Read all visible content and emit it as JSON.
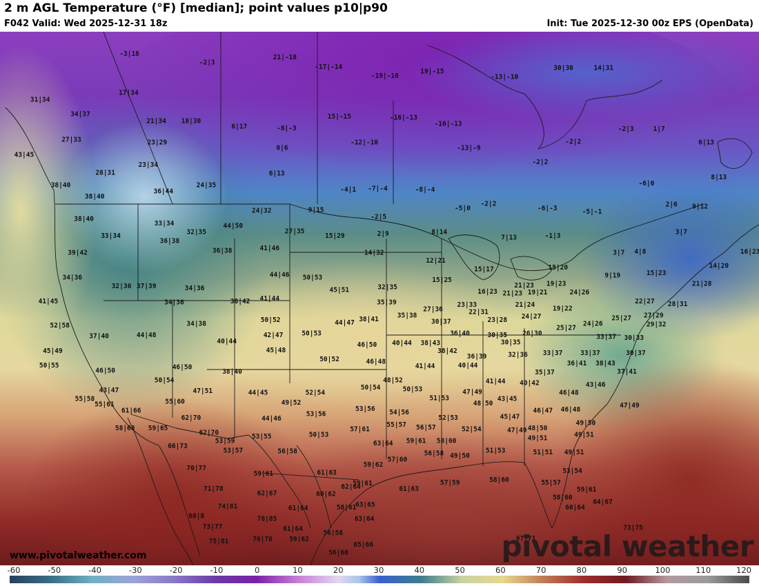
{
  "header": {
    "title": "2 m AGL Temperature (°F) [median]; point values p10|p90",
    "valid": "F042 Valid: Wed 2025-12-31 18z",
    "init": "Init: Tue 2025-12-30 00z EPS (OpenData)"
  },
  "footer": {
    "website": "www.pivotalweather.com",
    "brand": "pivotal weather"
  },
  "legend": {
    "ticks": [
      "-60",
      "-50",
      "-40",
      "-30",
      "-20",
      "-10",
      "0",
      "10",
      "20",
      "30",
      "40",
      "50",
      "60",
      "70",
      "80",
      "90",
      "100",
      "110",
      "120"
    ],
    "min": -60,
    "max": 120
  },
  "colors": {
    "cold_purple": "#7a35b8",
    "teal": "#3f7f86",
    "warm_tan": "#e9dfa0",
    "hot_red": "#8e1f22",
    "ocean_blue": "#3c66c7"
  },
  "point_values": [
    {
      "t": "-3|18",
      "x": -113.5,
      "y": 59.8
    },
    {
      "t": "-2|3",
      "x": -104.8,
      "y": 58.8
    },
    {
      "t": "21|-18",
      "x": -96.1,
      "y": 59.4
    },
    {
      "t": "-17|-14",
      "x": -91.2,
      "y": 58.3
    },
    {
      "t": "-19|-16",
      "x": -84.9,
      "y": 57.3
    },
    {
      "t": "19|-15",
      "x": -79.6,
      "y": 57.8
    },
    {
      "t": "-13|-10",
      "x": -71.5,
      "y": 57.2
    },
    {
      "t": "30|30",
      "x": -64.9,
      "y": 58.2
    },
    {
      "t": "14|31",
      "x": -60.4,
      "y": 58.2
    },
    {
      "t": "31|34",
      "x": -123.5,
      "y": 54.6
    },
    {
      "t": "17|34",
      "x": -113.6,
      "y": 55.4
    },
    {
      "t": "34|37",
      "x": -119.0,
      "y": 53.0
    },
    {
      "t": "21|34",
      "x": -110.5,
      "y": 52.2
    },
    {
      "t": "18|30",
      "x": -106.6,
      "y": 52.2
    },
    {
      "t": "6|17",
      "x": -101.2,
      "y": 51.6
    },
    {
      "t": "-8|-3",
      "x": -95.9,
      "y": 51.4
    },
    {
      "t": "15|-15",
      "x": -90.0,
      "y": 52.7
    },
    {
      "t": "-16|-13",
      "x": -82.8,
      "y": 52.6
    },
    {
      "t": "-16|-13",
      "x": -77.8,
      "y": 51.9
    },
    {
      "t": "-2|3",
      "x": -57.9,
      "y": 51.3
    },
    {
      "t": "1|7",
      "x": -54.2,
      "y": 51.3
    },
    {
      "t": "6|13",
      "x": -48.9,
      "y": 49.8
    },
    {
      "t": "27|33",
      "x": -120.0,
      "y": 50.1
    },
    {
      "t": "23|29",
      "x": -110.4,
      "y": 49.8
    },
    {
      "t": "0|6",
      "x": -96.4,
      "y": 49.2
    },
    {
      "t": "-12|-10",
      "x": -87.2,
      "y": 49.8
    },
    {
      "t": "-13|-9",
      "x": -75.5,
      "y": 49.2
    },
    {
      "t": "-2|2",
      "x": -63.8,
      "y": 49.9
    },
    {
      "t": "43|45",
      "x": -125.3,
      "y": 48.4
    },
    {
      "t": "23|34",
      "x": -111.4,
      "y": 47.3
    },
    {
      "t": "28|31",
      "x": -116.2,
      "y": 46.4
    },
    {
      "t": "6|13",
      "x": -97.0,
      "y": 46.3
    },
    {
      "t": "-2|2",
      "x": -67.5,
      "y": 47.6
    },
    {
      "t": "8|13",
      "x": -47.5,
      "y": 45.9
    },
    {
      "t": "38|40",
      "x": -121.2,
      "y": 45.0
    },
    {
      "t": "36|44",
      "x": -109.7,
      "y": 44.3
    },
    {
      "t": "24|35",
      "x": -104.9,
      "y": 45.0
    },
    {
      "t": "-4|1",
      "x": -89.0,
      "y": 44.5
    },
    {
      "t": "-7|-4",
      "x": -85.7,
      "y": 44.6
    },
    {
      "t": "-8|-4",
      "x": -80.4,
      "y": 44.5
    },
    {
      "t": "-6|0",
      "x": -55.6,
      "y": 45.2
    },
    {
      "t": "38|40",
      "x": -117.4,
      "y": 43.7
    },
    {
      "t": "24|32",
      "x": -98.7,
      "y": 42.1
    },
    {
      "t": "9|15",
      "x": -92.6,
      "y": 42.2
    },
    {
      "t": "-2|5",
      "x": -85.6,
      "y": 41.4
    },
    {
      "t": "-5|0",
      "x": -76.2,
      "y": 42.4
    },
    {
      "t": "-2|2",
      "x": -73.3,
      "y": 42.9
    },
    {
      "t": "-6|-3",
      "x": -66.7,
      "y": 42.4
    },
    {
      "t": "-5|-1",
      "x": -61.7,
      "y": 42.0
    },
    {
      "t": "2|6",
      "x": -52.8,
      "y": 42.8
    },
    {
      "t": "9|12",
      "x": -49.6,
      "y": 42.6
    },
    {
      "t": "38|40",
      "x": -118.6,
      "y": 41.2
    },
    {
      "t": "33|34",
      "x": -109.6,
      "y": 40.7
    },
    {
      "t": "44|50",
      "x": -101.9,
      "y": 40.4
    },
    {
      "t": "27|35",
      "x": -95.0,
      "y": 39.8
    },
    {
      "t": "15|29",
      "x": -90.5,
      "y": 39.3
    },
    {
      "t": "2|9",
      "x": -85.1,
      "y": 39.5
    },
    {
      "t": "8|14",
      "x": -78.8,
      "y": 39.7
    },
    {
      "t": "7|13",
      "x": -71.0,
      "y": 39.1
    },
    {
      "t": "-1|3",
      "x": -66.1,
      "y": 39.3
    },
    {
      "t": "3|7",
      "x": -51.7,
      "y": 39.7
    },
    {
      "t": "33|34",
      "x": -115.6,
      "y": 39.3
    },
    {
      "t": "32|35",
      "x": -106.0,
      "y": 39.7
    },
    {
      "t": "36|38",
      "x": -109.0,
      "y": 38.7
    },
    {
      "t": "41|46",
      "x": -97.8,
      "y": 37.9
    },
    {
      "t": "39|42",
      "x": -119.3,
      "y": 37.4
    },
    {
      "t": "36|38",
      "x": -103.1,
      "y": 37.6
    },
    {
      "t": "14|32",
      "x": -86.1,
      "y": 37.4
    },
    {
      "t": "3|7",
      "x": -58.7,
      "y": 37.4
    },
    {
      "t": "4|8",
      "x": -56.3,
      "y": 37.5
    },
    {
      "t": "16|23",
      "x": -44.0,
      "y": 37.5
    },
    {
      "t": "12|21",
      "x": -79.2,
      "y": 36.5
    },
    {
      "t": "15|17",
      "x": -73.8,
      "y": 35.5
    },
    {
      "t": "15|20",
      "x": -65.5,
      "y": 35.7
    },
    {
      "t": "14|20",
      "x": -47.5,
      "y": 35.9
    },
    {
      "t": "15|23",
      "x": -54.5,
      "y": 35.1
    },
    {
      "t": "34|36",
      "x": -119.9,
      "y": 34.6
    },
    {
      "t": "44|46",
      "x": -96.7,
      "y": 34.9
    },
    {
      "t": "50|53",
      "x": -93.0,
      "y": 34.6
    },
    {
      "t": "15|25",
      "x": -78.5,
      "y": 34.3
    },
    {
      "t": "9|19",
      "x": -59.4,
      "y": 34.8
    },
    {
      "t": "21|23",
      "x": -69.3,
      "y": 33.7
    },
    {
      "t": "19|23",
      "x": -65.7,
      "y": 33.9
    },
    {
      "t": "21|28",
      "x": -49.4,
      "y": 33.9
    },
    {
      "t": "32|36",
      "x": -114.4,
      "y": 33.6
    },
    {
      "t": "37|39",
      "x": -111.6,
      "y": 33.6
    },
    {
      "t": "34|36",
      "x": -106.2,
      "y": 33.4
    },
    {
      "t": "45|51",
      "x": -90.0,
      "y": 33.2
    },
    {
      "t": "32|35",
      "x": -84.6,
      "y": 33.5
    },
    {
      "t": "16|23",
      "x": -73.4,
      "y": 33.0
    },
    {
      "t": "21|23",
      "x": -70.6,
      "y": 32.8
    },
    {
      "t": "19|21",
      "x": -67.8,
      "y": 32.9
    },
    {
      "t": "24|26",
      "x": -63.1,
      "y": 32.9
    },
    {
      "t": "41|45",
      "x": -122.6,
      "y": 31.9
    },
    {
      "t": "34|36",
      "x": -108.5,
      "y": 31.8
    },
    {
      "t": "38|42",
      "x": -101.1,
      "y": 31.9
    },
    {
      "t": "41|44",
      "x": -97.8,
      "y": 32.2
    },
    {
      "t": "35|39",
      "x": -84.7,
      "y": 31.8
    },
    {
      "t": "27|36",
      "x": -79.5,
      "y": 31.0
    },
    {
      "t": "23|33",
      "x": -75.7,
      "y": 31.5
    },
    {
      "t": "21|24",
      "x": -69.2,
      "y": 31.5
    },
    {
      "t": "19|22",
      "x": -65.0,
      "y": 31.1
    },
    {
      "t": "22|27",
      "x": -55.8,
      "y": 31.9
    },
    {
      "t": "28|31",
      "x": -52.1,
      "y": 31.6
    },
    {
      "t": "22|31",
      "x": -74.4,
      "y": 30.7
    },
    {
      "t": "35|38",
      "x": -82.4,
      "y": 30.3
    },
    {
      "t": "38|41",
      "x": -86.7,
      "y": 29.9
    },
    {
      "t": "24|27",
      "x": -68.5,
      "y": 30.2
    },
    {
      "t": "27|29",
      "x": -54.8,
      "y": 30.3
    },
    {
      "t": "52|58",
      "x": -121.3,
      "y": 29.2
    },
    {
      "t": "34|38",
      "x": -106.0,
      "y": 29.4
    },
    {
      "t": "50|52",
      "x": -97.7,
      "y": 29.8
    },
    {
      "t": "44|47",
      "x": -89.4,
      "y": 29.5
    },
    {
      "t": "30|37",
      "x": -78.6,
      "y": 29.6
    },
    {
      "t": "23|28",
      "x": -72.3,
      "y": 29.8
    },
    {
      "t": "24|26",
      "x": -61.6,
      "y": 29.4
    },
    {
      "t": "25|27",
      "x": -58.4,
      "y": 30.0
    },
    {
      "t": "25|27",
      "x": -64.6,
      "y": 28.9
    },
    {
      "t": "29|32",
      "x": -54.5,
      "y": 29.3
    },
    {
      "t": "37|40",
      "x": -116.9,
      "y": 28.0
    },
    {
      "t": "44|48",
      "x": -111.6,
      "y": 28.1
    },
    {
      "t": "42|47",
      "x": -97.4,
      "y": 28.1
    },
    {
      "t": "50|53",
      "x": -93.1,
      "y": 28.3
    },
    {
      "t": "36|40",
      "x": -76.5,
      "y": 28.3
    },
    {
      "t": "30|35",
      "x": -72.3,
      "y": 28.1
    },
    {
      "t": "26|30",
      "x": -68.4,
      "y": 28.3
    },
    {
      "t": "33|37",
      "x": -60.1,
      "y": 27.9
    },
    {
      "t": "30|33",
      "x": -57.0,
      "y": 27.8
    },
    {
      "t": "40|44",
      "x": -102.6,
      "y": 27.4
    },
    {
      "t": "40|44",
      "x": -83.0,
      "y": 27.2
    },
    {
      "t": "38|43",
      "x": -79.8,
      "y": 27.2
    },
    {
      "t": "46|50",
      "x": -86.9,
      "y": 27.0
    },
    {
      "t": "30|35",
      "x": -70.8,
      "y": 27.3
    },
    {
      "t": "45|49",
      "x": -122.1,
      "y": 26.3
    },
    {
      "t": "45|48",
      "x": -97.1,
      "y": 26.4
    },
    {
      "t": "38|42",
      "x": -77.9,
      "y": 26.3
    },
    {
      "t": "33|37",
      "x": -66.1,
      "y": 26.1
    },
    {
      "t": "33|37",
      "x": -61.9,
      "y": 26.1
    },
    {
      "t": "30|37",
      "x": -56.8,
      "y": 26.1
    },
    {
      "t": "50|52",
      "x": -91.1,
      "y": 25.4
    },
    {
      "t": "46|48",
      "x": -85.9,
      "y": 25.1
    },
    {
      "t": "36|39",
      "x": -74.6,
      "y": 25.7
    },
    {
      "t": "32|36",
      "x": -70.0,
      "y": 25.9
    },
    {
      "t": "36|41",
      "x": -63.4,
      "y": 24.9
    },
    {
      "t": "38|43",
      "x": -60.2,
      "y": 24.9
    },
    {
      "t": "50|55",
      "x": -122.5,
      "y": 24.7
    },
    {
      "t": "41|44",
      "x": -80.4,
      "y": 24.6
    },
    {
      "t": "40|44",
      "x": -75.6,
      "y": 24.7
    },
    {
      "t": "46|50",
      "x": -116.2,
      "y": 24.1
    },
    {
      "t": "46|50",
      "x": -107.6,
      "y": 24.5
    },
    {
      "t": "38|40",
      "x": -102.0,
      "y": 24.0
    },
    {
      "t": "35|37",
      "x": -67.0,
      "y": 23.9
    },
    {
      "t": "37|41",
      "x": -57.8,
      "y": 24.0
    },
    {
      "t": "50|54",
      "x": -109.6,
      "y": 23.0
    },
    {
      "t": "48|52",
      "x": -84.0,
      "y": 23.0
    },
    {
      "t": "41|44",
      "x": -72.5,
      "y": 22.9
    },
    {
      "t": "40|42",
      "x": -68.7,
      "y": 22.7
    },
    {
      "t": "43|47",
      "x": -115.8,
      "y": 21.9
    },
    {
      "t": "47|51",
      "x": -105.3,
      "y": 21.8
    },
    {
      "t": "50|54",
      "x": -86.5,
      "y": 22.2
    },
    {
      "t": "50|53",
      "x": -81.8,
      "y": 22.0
    },
    {
      "t": "43|46",
      "x": -61.3,
      "y": 22.5
    },
    {
      "t": "44|45",
      "x": -99.1,
      "y": 21.6
    },
    {
      "t": "52|54",
      "x": -92.7,
      "y": 21.6
    },
    {
      "t": "47|49",
      "x": -75.1,
      "y": 21.7
    },
    {
      "t": "46|48",
      "x": -64.3,
      "y": 21.6
    },
    {
      "t": "55|58",
      "x": -118.5,
      "y": 20.9
    },
    {
      "t": "55|60",
      "x": -108.4,
      "y": 20.6
    },
    {
      "t": "51|53",
      "x": -78.8,
      "y": 21.0
    },
    {
      "t": "43|45",
      "x": -71.2,
      "y": 20.9
    },
    {
      "t": "55|61",
      "x": -116.3,
      "y": 20.3
    },
    {
      "t": "49|52",
      "x": -95.4,
      "y": 20.5
    },
    {
      "t": "48|50",
      "x": -73.9,
      "y": 20.4
    },
    {
      "t": "47|49",
      "x": -57.5,
      "y": 20.2
    },
    {
      "t": "61|66",
      "x": -113.3,
      "y": 19.6
    },
    {
      "t": "53|56",
      "x": -87.1,
      "y": 19.8
    },
    {
      "t": "54|56",
      "x": -83.3,
      "y": 19.4
    },
    {
      "t": "46|47",
      "x": -67.2,
      "y": 19.6
    },
    {
      "t": "46|48",
      "x": -64.1,
      "y": 19.7
    },
    {
      "t": "62|70",
      "x": -106.6,
      "y": 18.8
    },
    {
      "t": "44|46",
      "x": -97.6,
      "y": 18.7
    },
    {
      "t": "53|56",
      "x": -92.6,
      "y": 19.2
    },
    {
      "t": "52|53",
      "x": -77.8,
      "y": 18.8
    },
    {
      "t": "45|47",
      "x": -70.9,
      "y": 18.9
    },
    {
      "t": "49|50",
      "x": -62.4,
      "y": 18.2
    },
    {
      "t": "58|68",
      "x": -114.0,
      "y": 17.6
    },
    {
      "t": "59|65",
      "x": -110.3,
      "y": 17.6
    },
    {
      "t": "55|57",
      "x": -83.6,
      "y": 18.0
    },
    {
      "t": "56|57",
      "x": -80.3,
      "y": 17.7
    },
    {
      "t": "57|61",
      "x": -87.7,
      "y": 17.5
    },
    {
      "t": "48|50",
      "x": -67.8,
      "y": 17.6
    },
    {
      "t": "62|70",
      "x": -104.6,
      "y": 17.1
    },
    {
      "t": "50|53",
      "x": -92.3,
      "y": 16.9
    },
    {
      "t": "52|54",
      "x": -75.2,
      "y": 17.5
    },
    {
      "t": "47|49",
      "x": -70.1,
      "y": 17.4
    },
    {
      "t": "49|51",
      "x": -62.6,
      "y": 16.9
    },
    {
      "t": "53|59",
      "x": -102.8,
      "y": 16.2
    },
    {
      "t": "53|55",
      "x": -98.7,
      "y": 16.7
    },
    {
      "t": "63|64",
      "x": -85.1,
      "y": 15.9
    },
    {
      "t": "59|61",
      "x": -81.4,
      "y": 16.2
    },
    {
      "t": "58|60",
      "x": -78.0,
      "y": 16.2
    },
    {
      "t": "49|51",
      "x": -67.8,
      "y": 16.5
    },
    {
      "t": "66|73",
      "x": -108.1,
      "y": 15.6
    },
    {
      "t": "53|57",
      "x": -101.9,
      "y": 15.1
    },
    {
      "t": "56|58",
      "x": -95.8,
      "y": 15.0
    },
    {
      "t": "56|58",
      "x": -79.4,
      "y": 14.8
    },
    {
      "t": "51|53",
      "x": -72.5,
      "y": 15.1
    },
    {
      "t": "51|51",
      "x": -67.2,
      "y": 14.9
    },
    {
      "t": "49|51",
      "x": -63.7,
      "y": 14.9
    },
    {
      "t": "49|50",
      "x": -76.5,
      "y": 14.5
    },
    {
      "t": "57|60",
      "x": -83.5,
      "y": 14.1
    },
    {
      "t": "59|62",
      "x": -86.2,
      "y": 13.5
    },
    {
      "t": "70|77",
      "x": -106.0,
      "y": 13.1
    },
    {
      "t": "59|61",
      "x": -98.5,
      "y": 12.5
    },
    {
      "t": "61|63",
      "x": -91.4,
      "y": 12.6
    },
    {
      "t": "53|54",
      "x": -63.9,
      "y": 12.8
    },
    {
      "t": "59|61",
      "x": -87.4,
      "y": 11.4
    },
    {
      "t": "62|64",
      "x": -88.7,
      "y": 11.0
    },
    {
      "t": "57|59",
      "x": -77.6,
      "y": 11.5
    },
    {
      "t": "58|60",
      "x": -72.1,
      "y": 11.8
    },
    {
      "t": "61|63",
      "x": -82.2,
      "y": 10.8
    },
    {
      "t": "55|57",
      "x": -66.3,
      "y": 11.5
    },
    {
      "t": "71|78",
      "x": -104.1,
      "y": 10.8
    },
    {
      "t": "62|67",
      "x": -98.1,
      "y": 10.3
    },
    {
      "t": "60|62",
      "x": -91.5,
      "y": 10.2
    },
    {
      "t": "59|61",
      "x": -62.3,
      "y": 10.7
    },
    {
      "t": "58|60",
      "x": -65.0,
      "y": 9.8
    },
    {
      "t": "64|67",
      "x": -60.5,
      "y": 9.3
    },
    {
      "t": "74|81",
      "x": -102.5,
      "y": 8.8
    },
    {
      "t": "61|64",
      "x": -94.6,
      "y": 8.6
    },
    {
      "t": "58|61",
      "x": -89.2,
      "y": 8.7
    },
    {
      "t": "63|65",
      "x": -87.1,
      "y": 9.0
    },
    {
      "t": "60|64",
      "x": -63.6,
      "y": 8.7
    },
    {
      "t": "68|8",
      "x": -106.0,
      "y": 7.7
    },
    {
      "t": "78|85",
      "x": -98.1,
      "y": 7.4
    },
    {
      "t": "63|64",
      "x": -87.2,
      "y": 7.4
    },
    {
      "t": "73|77",
      "x": -104.2,
      "y": 6.5
    },
    {
      "t": "61|64",
      "x": -95.2,
      "y": 6.3
    },
    {
      "t": "56|58",
      "x": -90.7,
      "y": 5.8
    },
    {
      "t": "73|75",
      "x": -57.1,
      "y": 6.4
    },
    {
      "t": "75|81",
      "x": -103.5,
      "y": 4.9
    },
    {
      "t": "76|78",
      "x": -98.6,
      "y": 5.1
    },
    {
      "t": "59|62",
      "x": -94.5,
      "y": 5.1
    },
    {
      "t": "65|66",
      "x": -87.3,
      "y": 4.5
    },
    {
      "t": "67|71",
      "x": -69.1,
      "y": 5.2
    },
    {
      "t": "56|60",
      "x": -90.1,
      "y": 3.6
    }
  ]
}
